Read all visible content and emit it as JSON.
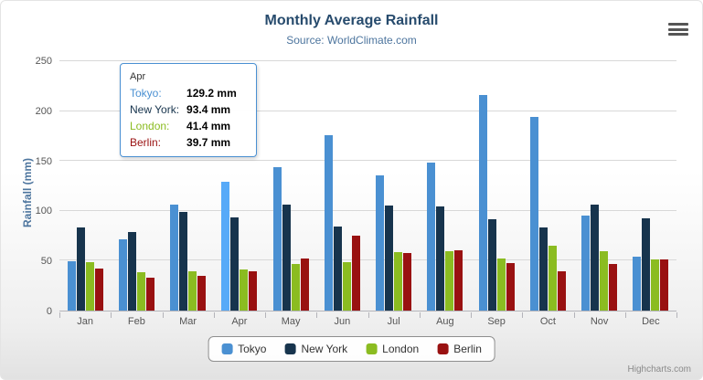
{
  "chart": {
    "title": "Monthly Average Rainfall",
    "subtitle": "Source: WorldClimate.com",
    "y_axis_title": "Rainfall (mm)",
    "credits": "Highcharts.com"
  },
  "chart_data": {
    "type": "bar",
    "title": "Monthly Average Rainfall",
    "subtitle": "Source: WorldClimate.com",
    "xlabel": "",
    "ylabel": "Rainfall (mm)",
    "ylim": [
      0,
      250
    ],
    "y_ticks": [
      0,
      50,
      100,
      150,
      200,
      250
    ],
    "grid": "horizontal",
    "legend_position": "bottom",
    "categories": [
      "Jan",
      "Feb",
      "Mar",
      "Apr",
      "May",
      "Jun",
      "Jul",
      "Aug",
      "Sep",
      "Oct",
      "Nov",
      "Dec"
    ],
    "series": [
      {
        "name": "Tokyo",
        "color": "#4a90d2",
        "values": [
          49.9,
          71.5,
          106.4,
          129.2,
          144.0,
          176.0,
          135.6,
          148.5,
          216.4,
          194.1,
          95.6,
          54.4
        ]
      },
      {
        "name": "New York",
        "color": "#17344d",
        "values": [
          83.6,
          78.8,
          98.5,
          93.4,
          106.0,
          84.5,
          105.0,
          104.3,
          91.2,
          83.5,
          106.6,
          92.3
        ]
      },
      {
        "name": "London",
        "color": "#8bbc21",
        "values": [
          48.9,
          38.8,
          39.3,
          41.4,
          47.0,
          48.3,
          59.0,
          59.6,
          52.4,
          65.2,
          59.3,
          51.2
        ]
      },
      {
        "name": "Berlin",
        "color": "#991111",
        "values": [
          42.4,
          33.2,
          34.5,
          39.7,
          52.6,
          75.5,
          57.4,
          60.4,
          47.6,
          39.1,
          46.8,
          51.1
        ]
      }
    ],
    "hover_state": {
      "category": "Apr",
      "series": "Tokyo"
    }
  },
  "tooltip": {
    "header": "Apr",
    "rows": [
      {
        "name": "Tokyo",
        "value": "129.2 mm",
        "color": "#4a90d2"
      },
      {
        "name": "New York",
        "value": "93.4 mm",
        "color": "#17344d"
      },
      {
        "name": "London",
        "value": "41.4 mm",
        "color": "#8bbc21"
      },
      {
        "name": "Berlin",
        "value": "39.7 mm",
        "color": "#991111"
      }
    ]
  },
  "legend": {
    "items": [
      "Tokyo",
      "New York",
      "London",
      "Berlin"
    ]
  }
}
